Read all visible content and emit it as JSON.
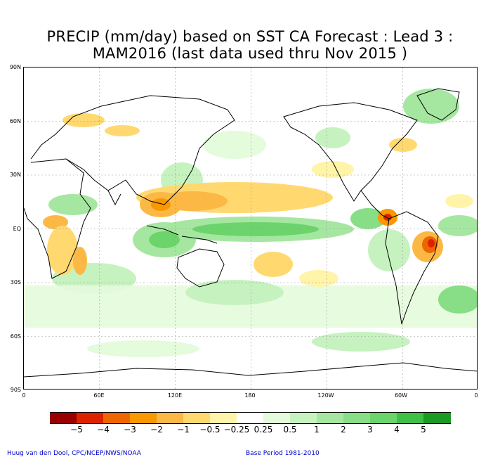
{
  "title": {
    "line1": "PRECIP (mm/day) based on SST CA Forecast : Lead 3 :",
    "line2": "MAM2016 (last data used thru Nov 2015 )"
  },
  "axes": {
    "lat_labels": [
      "90N",
      "60N",
      "30N",
      "EQ",
      "30S",
      "60S",
      "90S"
    ],
    "lon_labels": [
      "0",
      "60E",
      "120E",
      "180",
      "120W",
      "60W",
      "0"
    ]
  },
  "colorbar": {
    "colors": [
      "#990000",
      "#dd2200",
      "#ee6600",
      "#f99800",
      "#fcb845",
      "#ffd970",
      "#fff4a8",
      "#ffffff",
      "#e4fbdc",
      "#c6f2bf",
      "#a5e7a0",
      "#87de86",
      "#6bd46b",
      "#3fc146",
      "#1a9a22"
    ],
    "labels": [
      "−5",
      "−4",
      "−3",
      "−2",
      "−1",
      "−0.5",
      "−0.25",
      "0.25",
      "0.5",
      "1",
      "2",
      "3",
      "4",
      "5"
    ]
  },
  "footer": {
    "left": "Huug van den Dool, CPC/NCEP/NWS/NOAA",
    "right": "Base Period  1981-2010"
  },
  "map_data": {
    "projection": "equirectangular",
    "lon_range": [
      0,
      360
    ],
    "lat_range": [
      -90,
      90
    ],
    "variable": "PRECIP (mm/day)",
    "features": [
      {
        "name": "tropical-pacific-wet-band",
        "lon": [
          150,
          280
        ],
        "lat": [
          -5,
          10
        ],
        "sign": "positive",
        "level": "2-4"
      },
      {
        "name": "maritime-continent-wet",
        "lon": [
          90,
          150
        ],
        "lat": [
          -15,
          0
        ],
        "sign": "positive",
        "level": "1-3"
      },
      {
        "name": "north-pacific-subtropical-dry",
        "lon": [
          100,
          250
        ],
        "lat": [
          12,
          30
        ],
        "sign": "negative",
        "level": "-0.5 to -2"
      },
      {
        "name": "south-pacific-dry",
        "lon": [
          165,
          215
        ],
        "lat": [
          -30,
          -12
        ],
        "sign": "negative",
        "level": "-0.5 to -1"
      },
      {
        "name": "northeast-brazil-dry",
        "lon": [
          300,
          325
        ],
        "lat": [
          -20,
          0
        ],
        "sign": "negative",
        "level": "-1 to -4"
      },
      {
        "name": "central-america-dry",
        "lon": [
          268,
          292
        ],
        "lat": [
          2,
          14
        ],
        "sign": "negative",
        "level": "-1 to -4"
      },
      {
        "name": "east-africa-dry",
        "lon": [
          20,
          45
        ],
        "lat": [
          -25,
          5
        ],
        "sign": "negative",
        "level": "-0.5 to -2"
      },
      {
        "name": "southern-ocean-wet-belt",
        "lon": [
          0,
          360
        ],
        "lat": [
          -60,
          -40
        ],
        "sign": "positive",
        "level": "0.25-1"
      }
    ]
  }
}
